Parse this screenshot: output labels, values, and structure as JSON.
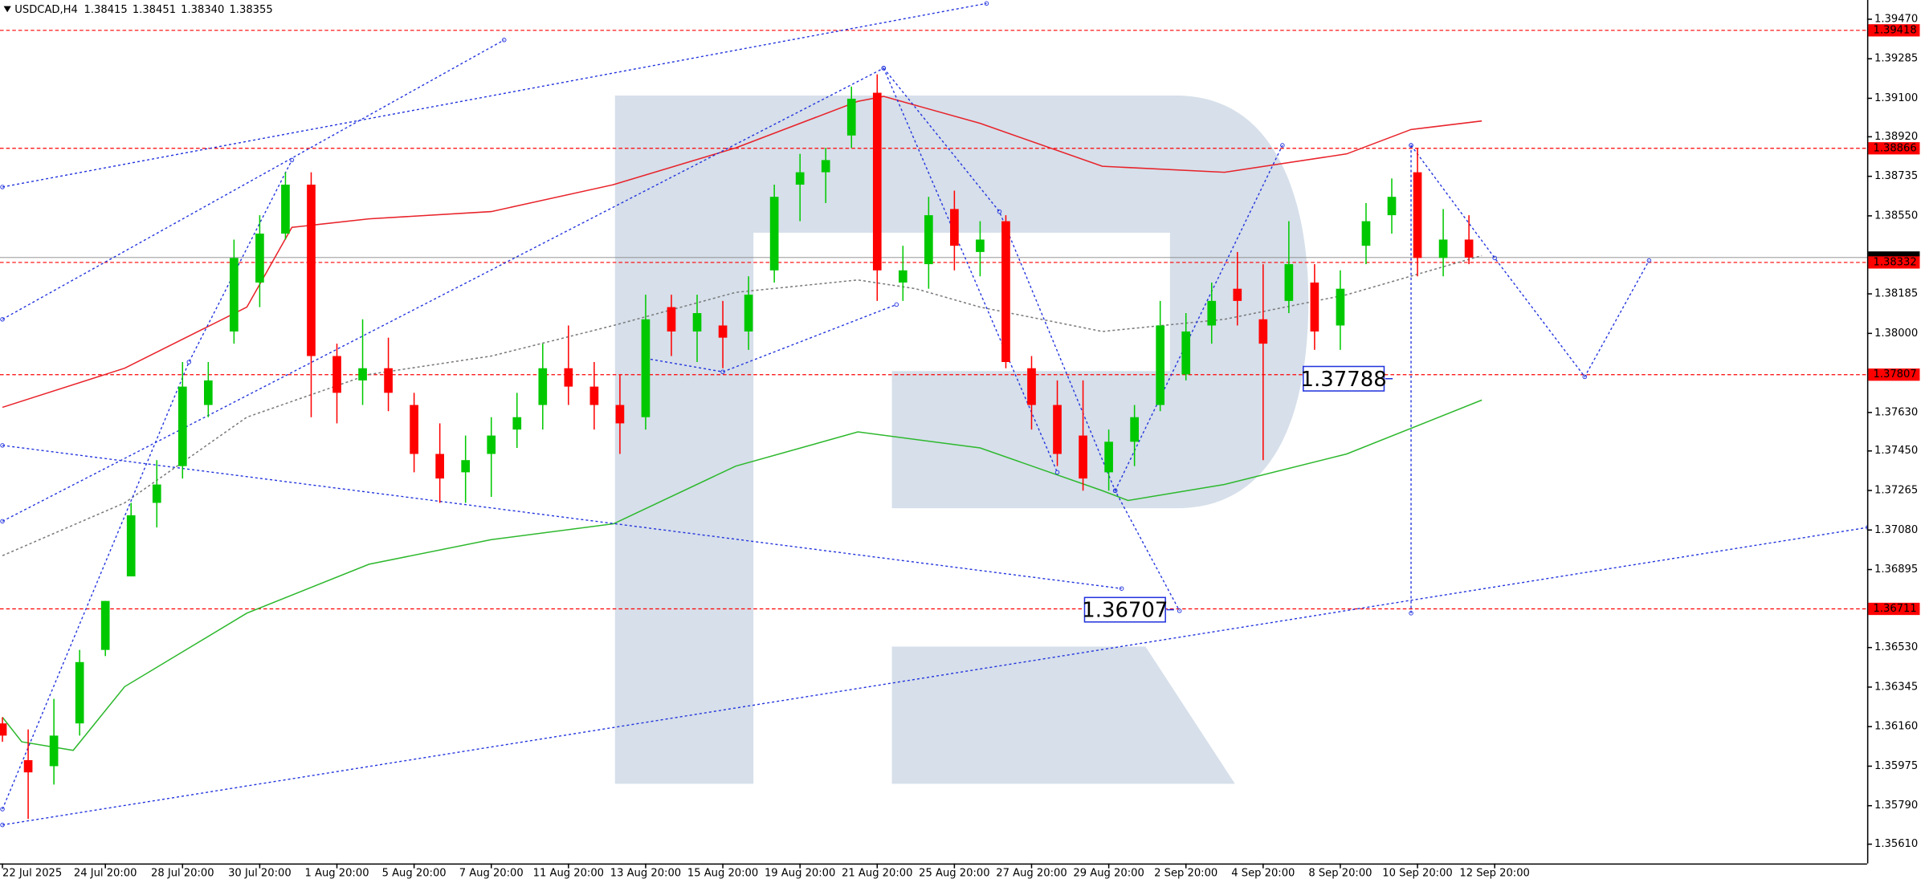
{
  "chart_data": {
    "type": "candlestick",
    "title": "USDCAD,H4",
    "header_prices": [
      "1.38415",
      "1.38451",
      "1.38340",
      "1.38355"
    ],
    "x": [
      0,
      4,
      8,
      12,
      16,
      20,
      24,
      28,
      32,
      36,
      40,
      44,
      48,
      52,
      56,
      60,
      64,
      68,
      72,
      76,
      80,
      84,
      88,
      92,
      96,
      100,
      104,
      108,
      112,
      116,
      120,
      124,
      128,
      132,
      136,
      140,
      144,
      148,
      152,
      156,
      160,
      164,
      168,
      172,
      176,
      180,
      184,
      188,
      192,
      196,
      200,
      204,
      208,
      212,
      216,
      220,
      224,
      228
    ],
    "open": [
      1.36175,
      1.36003,
      1.35975,
      1.36175,
      1.36519,
      1.36863,
      1.37207,
      1.37379,
      1.37665,
      1.38009,
      1.38238,
      1.38467,
      1.38696,
      1.37894,
      1.3778,
      1.37837,
      1.37665,
      1.37436,
      1.3735,
      1.37436,
      1.3755,
      1.37665,
      1.37837,
      1.37751,
      1.37665,
      1.37608,
      1.38123,
      1.38009,
      1.38037,
      1.38009,
      1.38295,
      1.38696,
      1.38754,
      1.38926,
      1.39126,
      1.38238,
      1.38324,
      1.38582,
      1.38381,
      1.38525,
      1.37837,
      1.37665,
      1.37522,
      1.3735,
      1.37493,
      1.37665,
      1.37808,
      1.38037,
      1.38209,
      1.38066,
      1.38152,
      1.38238,
      1.38037,
      1.3841,
      1.38553,
      1.38754,
      1.38353,
      1.38439
    ],
    "high": [
      1.36204,
      1.36147,
      1.3629,
      1.36519,
      1.36748,
      1.37207,
      1.37407,
      1.37866,
      1.37866,
      1.38439,
      1.38553,
      1.38754,
      1.38754,
      1.37952,
      1.38066,
      1.3798,
      1.37722,
      1.37579,
      1.37522,
      1.37608,
      1.37722,
      1.37952,
      1.38037,
      1.37866,
      1.37808,
      1.38181,
      1.38181,
      1.38181,
      1.38152,
      1.38267,
      1.38696,
      1.3884,
      1.38868,
      1.39155,
      1.39212,
      1.3841,
      1.38639,
      1.38668,
      1.38525,
      1.38553,
      1.37894,
      1.3778,
      1.3778,
      1.3755,
      1.37665,
      1.38152,
      1.38095,
      1.38238,
      1.38381,
      1.38324,
      1.38525,
      1.38324,
      1.38295,
      1.3861,
      1.38725,
      1.38868,
      1.38582,
      1.38553
    ],
    "low": [
      1.36089,
      1.35728,
      1.35889,
      1.36118,
      1.3649,
      1.36863,
      1.37092,
      1.37321,
      1.37608,
      1.37952,
      1.38123,
      1.38439,
      1.37608,
      1.37579,
      1.37665,
      1.37636,
      1.3735,
      1.37207,
      1.37207,
      1.37235,
      1.37464,
      1.3755,
      1.37665,
      1.3755,
      1.37436,
      1.3755,
      1.37894,
      1.37866,
      1.37837,
      1.37923,
      1.38238,
      1.38525,
      1.3861,
      1.38868,
      1.38152,
      1.38152,
      1.38209,
      1.38295,
      1.38267,
      1.37837,
      1.3755,
      1.37379,
      1.37264,
      1.37264,
      1.37379,
      1.37636,
      1.3778,
      1.37952,
      1.38037,
      1.37407,
      1.38095,
      1.37923,
      1.37923,
      1.38324,
      1.38467,
      1.38267,
      1.38267,
      1.38324
    ],
    "close": [
      1.36118,
      1.35946,
      1.36118,
      1.36462,
      1.36748,
      1.37149,
      1.37293,
      1.37751,
      1.3778,
      1.38353,
      1.38467,
      1.38696,
      1.37894,
      1.37722,
      1.37837,
      1.37722,
      1.37436,
      1.37321,
      1.37407,
      1.37522,
      1.37608,
      1.37837,
      1.37751,
      1.37665,
      1.37579,
      1.38066,
      1.38009,
      1.38095,
      1.3798,
      1.38181,
      1.38639,
      1.38754,
      1.38811,
      1.39098,
      1.38295,
      1.38295,
      1.38553,
      1.3841,
      1.38439,
      1.37866,
      1.37665,
      1.37436,
      1.37321,
      1.37493,
      1.37608,
      1.38037,
      1.38009,
      1.38152,
      1.38152,
      1.37952,
      1.38324,
      1.38009,
      1.38209,
      1.38525,
      1.38639,
      1.38353,
      1.38439,
      1.38355
    ],
    "up_color": "#00c800",
    "down_color": "#ff0000",
    "moving_averages": [
      {
        "color": "#e8232a",
        "dash": false,
        "x": [
          0,
          19,
          38,
          45,
          57,
          76,
          95,
          114,
          133,
          137,
          152,
          171,
          190,
          209,
          219,
          230
        ],
        "values": [
          1.37654,
          1.37837,
          1.38123,
          1.38496,
          1.38536,
          1.3857,
          1.38696,
          1.38868,
          1.39086,
          1.39109,
          1.38983,
          1.38782,
          1.38754,
          1.3884,
          1.38954,
          1.38994
        ]
      },
      {
        "color": "#2db82d",
        "dash": false,
        "x": [
          0,
          3,
          11,
          19,
          38,
          57,
          76,
          95,
          114,
          133,
          152,
          171,
          175,
          190,
          209,
          230
        ],
        "values": [
          1.36204,
          1.36089,
          1.36049,
          1.36347,
          1.36691,
          1.3692,
          1.37035,
          1.37109,
          1.37379,
          1.37539,
          1.37464,
          1.37264,
          1.37218,
          1.37293,
          1.37436,
          1.37688
        ]
      },
      {
        "color": "#7a7a7a",
        "dash": true,
        "x": [
          0,
          19,
          38,
          57,
          76,
          95,
          114,
          133,
          142,
          152,
          171,
          190,
          209,
          230
        ],
        "values": [
          1.3696,
          1.37207,
          1.37608,
          1.37808,
          1.37894,
          1.38037,
          1.38192,
          1.3825,
          1.38209,
          1.38123,
          1.38009,
          1.38066,
          1.38181,
          1.38364
        ]
      }
    ],
    "drawing_color": "#2233dd",
    "drawings": [
      {
        "x": [
          0,
          153
        ],
        "values": [
          1.38685,
          1.39544
        ]
      },
      {
        "x": [
          0,
          78
        ],
        "values": [
          1.38066,
          1.39373
        ]
      },
      {
        "x": [
          0,
          137
        ],
        "values": [
          1.37121,
          1.39241
        ]
      },
      {
        "x": [
          100,
          112,
          139
        ],
        "values": [
          1.37883,
          1.3782,
          1.38135
        ]
      },
      {
        "x": [
          137,
          155,
          173,
          183
        ],
        "values": [
          1.39241,
          1.3857,
          1.37264,
          1.36702
        ]
      },
      {
        "x": [
          137,
          164
        ],
        "values": [
          1.39241,
          1.3735
        ]
      },
      {
        "x": [
          173,
          199
        ],
        "values": [
          1.37264,
          1.3888
        ]
      },
      {
        "x": [
          219,
          232,
          246,
          256
        ],
        "values": [
          1.3888,
          1.38353,
          1.37797,
          1.38341
        ]
      },
      {
        "x": [
          219,
          219
        ],
        "values": [
          1.3888,
          1.36691
        ]
      },
      {
        "x": [
          0,
          290
        ],
        "values": [
          1.357,
          1.37092
        ]
      },
      {
        "x": [
          0,
          174
        ],
        "values": [
          1.37476,
          1.36806
        ]
      },
      {
        "x": [
          0,
          29,
          45
        ],
        "values": [
          1.35774,
          1.37866,
          1.38811
        ]
      }
    ],
    "levels": [
      1.39418,
      1.38866,
      1.38332,
      1.37807,
      1.36711
    ],
    "level_color": "#ff0000",
    "current_price": 1.38355,
    "annotations": [
      {
        "value": 1.37788,
        "x": 215
      },
      {
        "value": 1.36707,
        "x": 181
      }
    ],
    "xlim": [
      -0.38,
      289.9
    ],
    "xticks": [
      {
        "value": 0,
        "label": "22 Jul 2025"
      },
      {
        "value": 16,
        "label": "24 Jul 20:00"
      },
      {
        "value": 28,
        "label": "28 Jul 20:00"
      },
      {
        "value": 40,
        "label": "30 Jul 20:00"
      },
      {
        "value": 52,
        "label": "1 Aug 20:00"
      },
      {
        "value": 64,
        "label": "5 Aug 20:00"
      },
      {
        "value": 76,
        "label": "7 Aug 20:00"
      },
      {
        "value": 88,
        "label": "11 Aug 20:00"
      },
      {
        "value": 100,
        "label": "13 Aug 20:00"
      },
      {
        "value": 112,
        "label": "15 Aug 20:00"
      },
      {
        "value": 124,
        "label": "19 Aug 20:00"
      },
      {
        "value": 136,
        "label": "21 Aug 20:00"
      },
      {
        "value": 148,
        "label": "25 Aug 20:00"
      },
      {
        "value": 160,
        "label": "27 Aug 20:00"
      },
      {
        "value": 172,
        "label": "29 Aug 20:00"
      },
      {
        "value": 184,
        "label": "2 Sep 20:00"
      },
      {
        "value": 196,
        "label": "4 Sep 20:00"
      },
      {
        "value": 208,
        "label": "8 Sep 20:00"
      },
      {
        "value": 220,
        "label": "10 Sep 20:00"
      },
      {
        "value": 232,
        "label": "12 Sep 20:00"
      }
    ],
    "ylim": [
      1.3552,
      1.3956
    ],
    "yticks": [
      {
        "value": 1.3947,
        "label": "1.39470"
      },
      {
        "value": 1.39285,
        "label": "1.39285"
      },
      {
        "value": 1.391,
        "label": "1.39100"
      },
      {
        "value": 1.3892,
        "label": "1.38920"
      },
      {
        "value": 1.38735,
        "label": "1.38735"
      },
      {
        "value": 1.3855,
        "label": "1.38550"
      },
      {
        "value": 1.38185,
        "label": "1.38185"
      },
      {
        "value": 1.38,
        "label": "1.38000"
      },
      {
        "value": 1.3763,
        "label": "1.37630"
      },
      {
        "value": 1.3745,
        "label": "1.37450"
      },
      {
        "value": 1.37265,
        "label": "1.37265"
      },
      {
        "value": 1.3708,
        "label": "1.37080"
      },
      {
        "value": 1.36895,
        "label": "1.36895"
      },
      {
        "value": 1.3653,
        "label": "1.36530"
      },
      {
        "value": 1.36345,
        "label": "1.36345"
      },
      {
        "value": 1.3616,
        "label": "1.36160"
      },
      {
        "value": 1.35975,
        "label": "1.35975"
      },
      {
        "value": 1.3579,
        "label": "1.35790"
      },
      {
        "value": 1.3561,
        "label": "1.35610"
      }
    ]
  }
}
